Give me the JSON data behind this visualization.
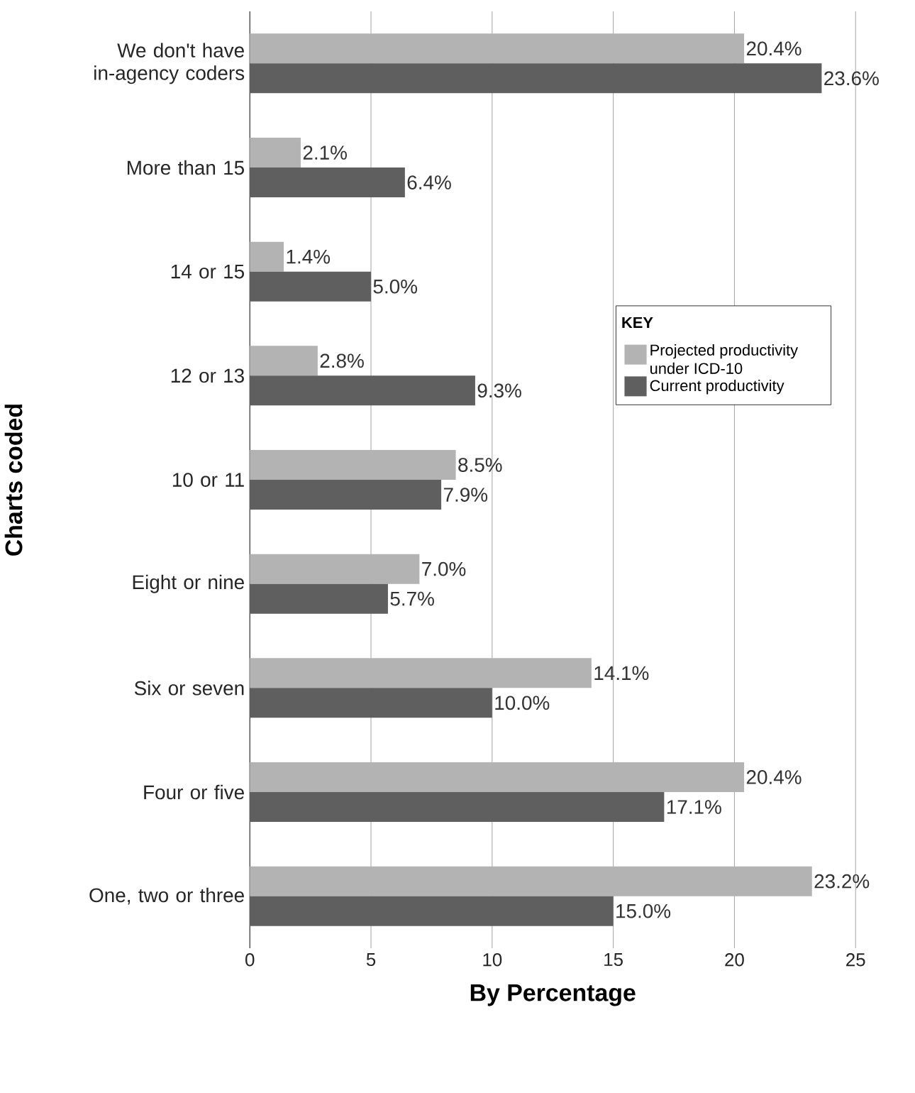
{
  "chart_data": {
    "type": "bar",
    "orientation": "horizontal",
    "categories": [
      "We don't have in-agency coders",
      "More than 15",
      "14 or 15",
      "12 or 13",
      "10 or 11",
      "Eight or nine",
      "Six or seven",
      "Four or five",
      "One, two or three"
    ],
    "series": [
      {
        "name": "Projected productivity under ICD-10",
        "color": "#b3b3b3",
        "values": [
          20.4,
          2.1,
          1.4,
          2.8,
          8.5,
          7.0,
          14.1,
          20.4,
          23.2
        ],
        "value_labels": [
          "20.4%",
          "2.1%",
          "1.4%",
          "2.8%",
          "8.5%",
          "7.0%",
          "14.1%",
          "20.4%",
          "23.2%"
        ]
      },
      {
        "name": "Current productivity",
        "color": "#5f5f5f",
        "values": [
          23.6,
          6.4,
          5.0,
          9.3,
          7.9,
          5.7,
          10.0,
          17.1,
          15.0
        ],
        "value_labels": [
          "23.6%",
          "6.4%",
          "5.0%",
          "9.3%",
          "7.9%",
          "5.7%",
          "10.0%",
          "17.1%",
          "15.0%"
        ]
      }
    ],
    "xlabel": "By Percentage",
    "ylabel": "Charts coded",
    "legend_title": "KEY",
    "xlim": [
      0,
      25
    ],
    "xticks": [
      0,
      5,
      10,
      15,
      20,
      25
    ],
    "grid": "x",
    "legend": "right"
  }
}
